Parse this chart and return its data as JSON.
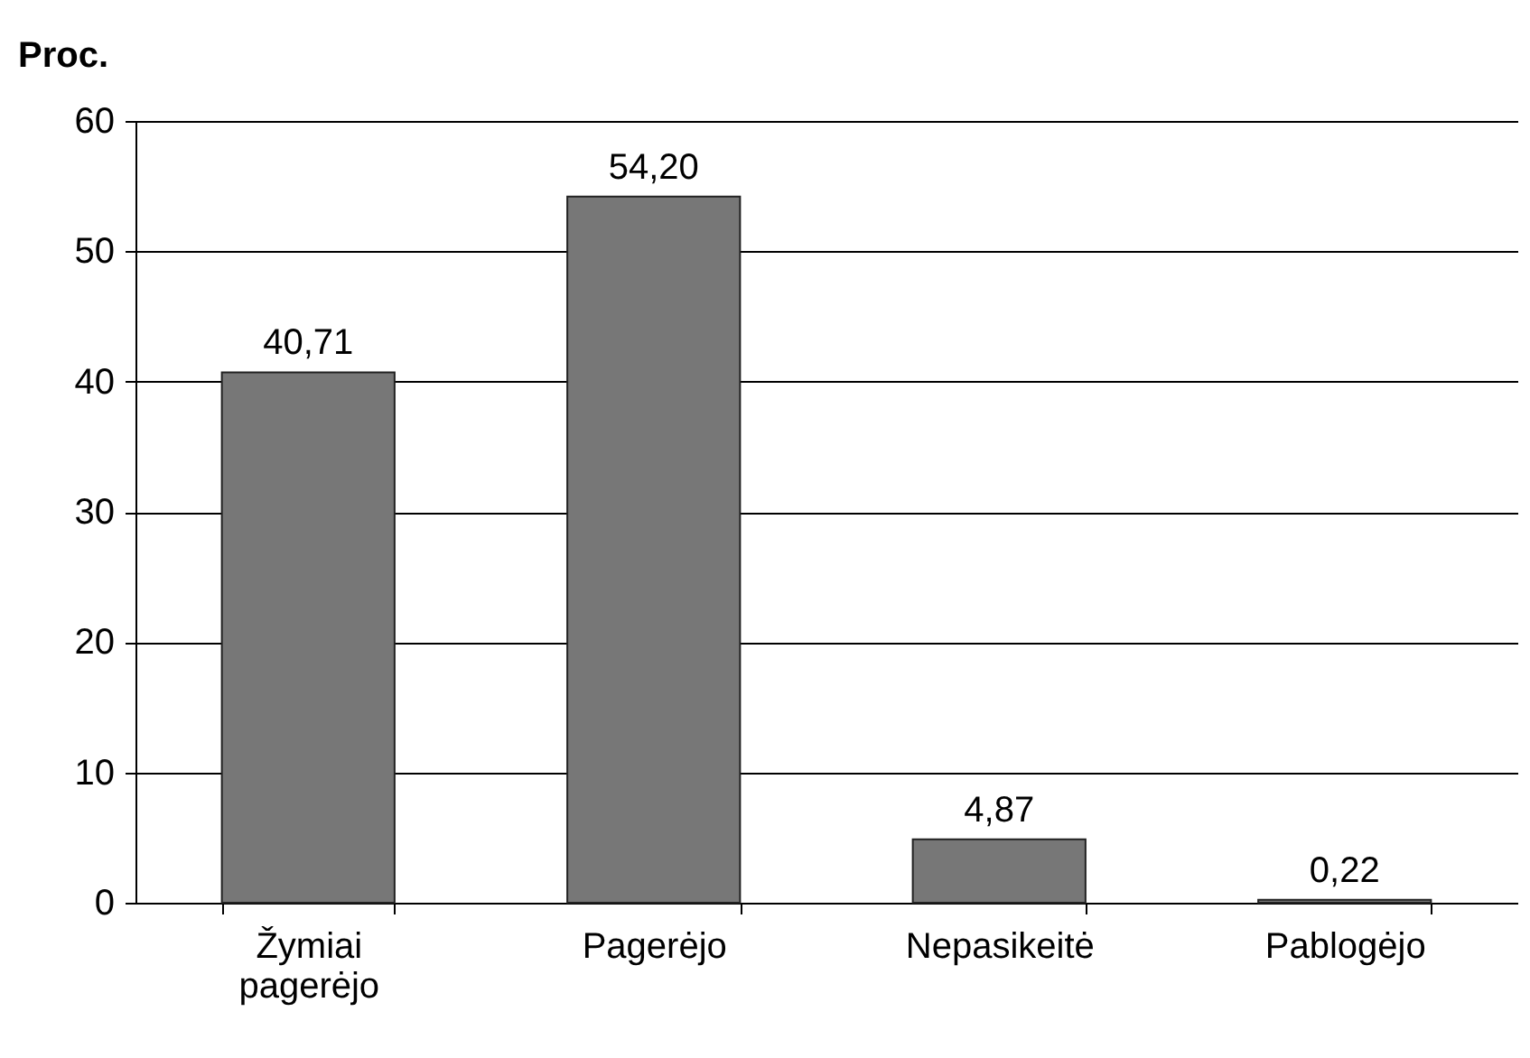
{
  "chart_data": {
    "type": "bar",
    "ylabel": "Proc.",
    "categories": [
      "Žymiai pagerėjo",
      "Pagerėjo",
      "Nepasikeitė",
      "Pablogėjo"
    ],
    "values": [
      40.71,
      54.2,
      4.87,
      0.22
    ],
    "value_labels": [
      "40,71",
      "54,20",
      "4,87",
      "0,22"
    ],
    "color": "#777777",
    "ylim": [
      0,
      60
    ],
    "yticks": [
      0,
      10,
      20,
      30,
      40,
      50,
      60
    ],
    "grid": "y"
  }
}
